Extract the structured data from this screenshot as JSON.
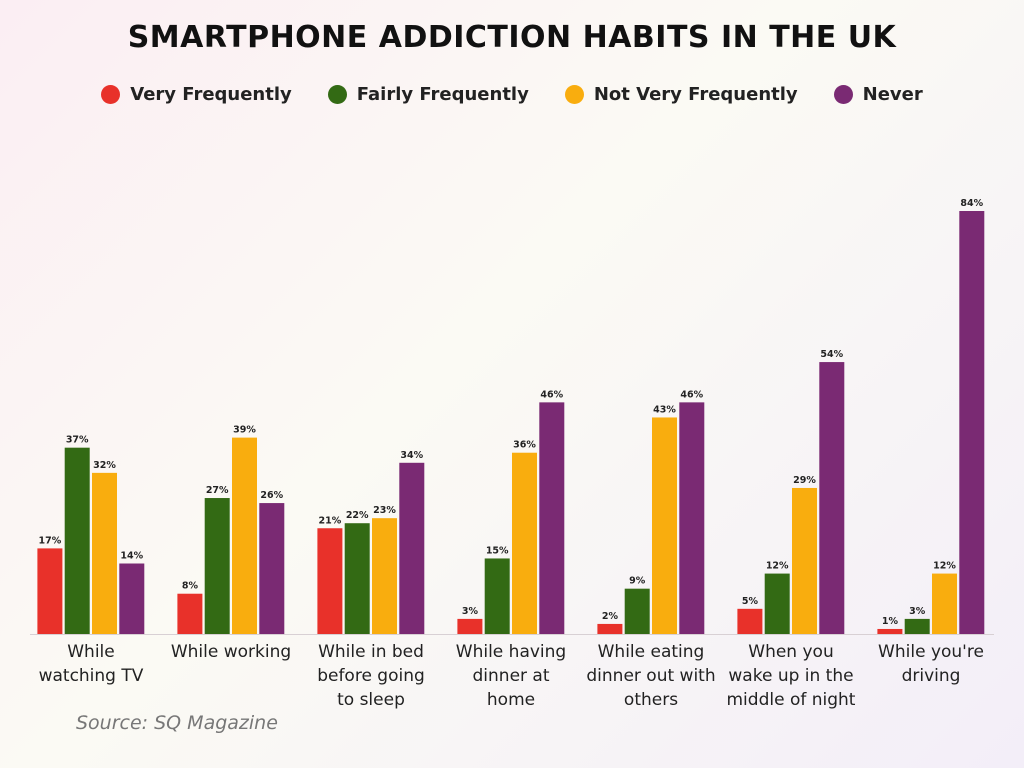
{
  "chart_data": {
    "type": "bar",
    "title": "SMARTPHONE ADDICTION HABITS IN THE UK",
    "source": "Source: SQ Magazine",
    "categories": [
      "While watching TV",
      "While working",
      "While in bed before going to sleep",
      "While having dinner at home",
      "While eating dinner out with others",
      "When you wake up in the middle of night",
      "While you're driving"
    ],
    "series": [
      {
        "name": "Very Frequently",
        "color": "#e8312a",
        "values": [
          17,
          8,
          21,
          3,
          2,
          5,
          1
        ],
        "value_labels": [
          "17%",
          "8%",
          "21%",
          "3%",
          "2%",
          "5%",
          "1%"
        ]
      },
      {
        "name": "Fairly Frequently",
        "color": "#336a14",
        "values": [
          37,
          27,
          22,
          15,
          9,
          12,
          3
        ],
        "value_labels": [
          "37%",
          "27%",
          "22%",
          "15%",
          "9%",
          "12%",
          "3%"
        ]
      },
      {
        "name": "Not Very Frequently",
        "color": "#f9ad0e",
        "values": [
          32,
          39,
          23,
          36,
          43,
          29,
          12
        ],
        "value_labels": [
          "32%",
          "39%",
          "23%",
          "36%",
          "43%",
          "29%",
          "12%"
        ]
      },
      {
        "name": "Never",
        "color": "#7a2a73",
        "values": [
          14,
          26,
          34,
          46,
          46,
          54,
          84
        ],
        "value_labels": [
          "14%",
          "26%",
          "34%",
          "46%",
          "46%",
          "54%",
          "84%"
        ]
      }
    ]
  }
}
